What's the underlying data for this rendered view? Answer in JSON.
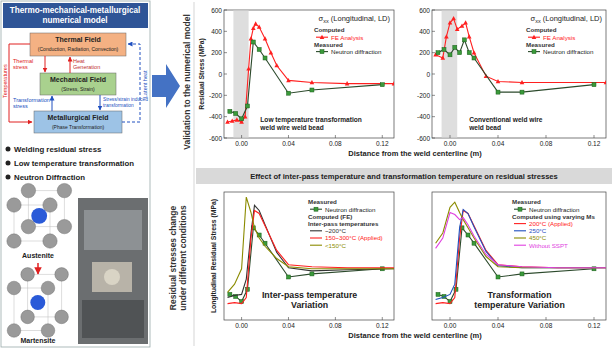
{
  "model_panel": {
    "title": [
      "Thermo-mechanical-metallurgical",
      "numerical model"
    ],
    "fields": [
      {
        "name": "Thermal Field",
        "detail": "(Conduction, Radiation, Convection)"
      },
      {
        "name": "Mechanical Field",
        "detail": "(Stress, Strain)"
      },
      {
        "name": "Metallurgical Field",
        "detail": "(Phase Transformation)"
      }
    ],
    "arrows": {
      "temperatures": [
        "Temperatures"
      ],
      "thermal_stress": [
        "Thermal",
        "stress"
      ],
      "heat_generation": [
        "Heat",
        "Generation"
      ],
      "latent_heat": [
        "Latent heat"
      ],
      "transformation_stress": [
        "Transformation",
        "stress"
      ],
      "induced_transformation": [
        "Stress/strain induced",
        "transformation"
      ]
    },
    "bullets": [
      "Welding residual stress",
      "Low temperature transformation",
      "Neutron Diffraction"
    ],
    "phases": [
      "Austenite",
      "Martensite"
    ]
  },
  "sections": {
    "validation": "Validation to the numerical model",
    "conditions": [
      "Residual stresses change",
      "under different conditions"
    ]
  },
  "bottom_header": "Effect of inter-pass temperature and transformation temperature on residual stresses",
  "chart_data": [
    {
      "type": "line",
      "title": "σxx (Longitudinal, LD)",
      "ylabel": "Residual Stress (MPa)",
      "xlabel": "Distance from the weld centerline (m)",
      "xlim": [
        -0.015,
        0.13
      ],
      "ylim": [
        -600,
        600
      ],
      "xticks": [
        {
          "value": 0,
          "label": "0.00"
        },
        {
          "value": 0.04,
          "label": "0.04"
        },
        {
          "value": 0.08,
          "label": "0.08"
        },
        {
          "value": 0.12,
          "label": "0.12"
        }
      ],
      "yticks": [
        -600,
        -400,
        -200,
        0,
        200,
        400,
        600
      ],
      "legend": "upper right",
      "shaded_region": [
        -0.007,
        0.006
      ],
      "annotation": [
        "Low temperature transformation",
        "weld wire weld bead"
      ],
      "series": [
        {
          "name": "FE Analysis",
          "legend_heading": [
            "Computed"
          ],
          "color": "#ff2020",
          "marker": "triangle",
          "x": [
            -0.012,
            -0.008,
            -0.004,
            0,
            0.003,
            0.006,
            0.008,
            0.01,
            0.012,
            0.015,
            0.02,
            0.025,
            0.03,
            0.04,
            0.06,
            0.09,
            0.13
          ],
          "values": [
            -450,
            -440,
            -430,
            -450,
            -400,
            50,
            330,
            430,
            470,
            440,
            330,
            200,
            80,
            -60,
            -80,
            -90,
            -90
          ]
        },
        {
          "name": "Neutron diffraction",
          "legend_heading": [
            "Measured"
          ],
          "color": "#3a9a3a",
          "marker": "square",
          "x": [
            -0.01,
            -0.005,
            0,
            0.005,
            0.01,
            0.015,
            0.02,
            0.04,
            0.06,
            0.12
          ],
          "values": [
            -350,
            -370,
            -420,
            -300,
            300,
            230,
            150,
            -180,
            -150,
            -100
          ]
        }
      ]
    },
    {
      "type": "line",
      "title": "σxx (Longitudinal, LD)",
      "xlim": [
        -0.015,
        0.13
      ],
      "ylim": [
        -600,
        600
      ],
      "xticks": [
        {
          "value": 0,
          "label": "0.00"
        },
        {
          "value": 0.04,
          "label": "0.04"
        },
        {
          "value": 0.08,
          "label": "0.08"
        },
        {
          "value": 0.12,
          "label": "0.12"
        }
      ],
      "yticks": [
        -600,
        -400,
        -200,
        0,
        200,
        400,
        600
      ],
      "legend": "upper right",
      "shaded_region": [
        -0.007,
        0.006
      ],
      "annotation": [
        "Conventional weld wire",
        "weld bead"
      ],
      "series": [
        {
          "name": "FE Analysis",
          "legend_heading": [
            "Computed"
          ],
          "color": "#ff2020",
          "marker": "triangle",
          "x": [
            -0.012,
            -0.006,
            -0.003,
            0,
            0.003,
            0.006,
            0.01,
            0.013,
            0.016,
            0.02,
            0.03,
            0.04,
            0.06,
            0.13
          ],
          "values": [
            180,
            150,
            350,
            480,
            520,
            420,
            450,
            480,
            350,
            200,
            -20,
            -70,
            -80,
            -80
          ]
        },
        {
          "name": "Neutron diffraction",
          "legend_heading": [
            "Measured"
          ],
          "color": "#3a9a3a",
          "marker": "square",
          "x": [
            -0.01,
            -0.005,
            0,
            0.004,
            0.008,
            0.012,
            0.016,
            0.02,
            0.04,
            0.06,
            0.12
          ],
          "values": [
            200,
            230,
            180,
            250,
            200,
            320,
            200,
            150,
            -170,
            -170,
            -100
          ]
        }
      ]
    },
    {
      "type": "line",
      "ylabel": "Longitudinal Residual Stress (MPa)",
      "xlabel": "Distance from the weld centerline (m)",
      "xlim": [
        -0.015,
        0.13
      ],
      "ylim": [
        -600,
        650
      ],
      "tick_labels": "x",
      "xticks": [
        {
          "value": 0,
          "label": "0.00"
        },
        {
          "value": 0.04,
          "label": "0.04"
        },
        {
          "value": 0.08,
          "label": "0.08"
        },
        {
          "value": 0.12,
          "label": "0.12"
        }
      ],
      "legend": "upper right",
      "annotation": [
        "Inter-pass temperature",
        "Variation"
      ],
      "series": [
        {
          "name": "Neutron diffraction",
          "legend_heading": [
            "Measured"
          ],
          "color": "#3a9a3a",
          "marker": "square",
          "x": [
            -0.01,
            -0.005,
            0,
            0.005,
            0.01,
            0.015,
            0.02,
            0.04,
            0.06,
            0.12
          ],
          "values": [
            -350,
            -370,
            -420,
            -300,
            300,
            230,
            150,
            -180,
            -150,
            -100
          ]
        },
        {
          "name": "~200°C",
          "legend_heading": [
            "Computed (FE)",
            "Inter-pass temperatures"
          ],
          "color": "#333333",
          "x": [
            -0.012,
            -0.006,
            0,
            0.004,
            0.008,
            0.011,
            0.015,
            0.02,
            0.03,
            0.04,
            0.06,
            0.09,
            0.13
          ],
          "values": [
            -380,
            -360,
            -350,
            -200,
            250,
            520,
            470,
            330,
            60,
            -90,
            -120,
            -110,
            -100
          ]
        },
        {
          "name": "150~300°C (Applied)",
          "color": "#ff2020",
          "x": [
            -0.012,
            -0.006,
            0,
            0.004,
            0.008,
            0.011,
            0.015,
            0.02,
            0.03,
            0.04,
            0.06,
            0.09,
            0.13
          ],
          "values": [
            -440,
            -430,
            -440,
            -380,
            200,
            470,
            440,
            320,
            80,
            -60,
            -80,
            -90,
            -90
          ]
        },
        {
          "name": "<150°C",
          "color": "#8b8b00",
          "x": [
            -0.012,
            -0.006,
            0,
            0.004,
            0.008,
            0.011,
            0.015,
            0.02,
            0.03,
            0.04,
            0.06,
            0.09,
            0.13
          ],
          "values": [
            -330,
            -250,
            -100,
            600,
            450,
            300,
            200,
            120,
            0,
            -80,
            -100,
            -100,
            -100
          ]
        }
      ]
    },
    {
      "type": "line",
      "xlim": [
        -0.015,
        0.13
      ],
      "ylim": [
        -600,
        650
      ],
      "tick_labels": "x",
      "xticks": [
        {
          "value": 0,
          "label": "0.00"
        },
        {
          "value": 0.04,
          "label": "0.04"
        },
        {
          "value": 0.08,
          "label": "0.08"
        },
        {
          "value": 0.12,
          "label": "0.12"
        }
      ],
      "legend": "upper right",
      "annotation": [
        "Transformation",
        "temperature Variation"
      ],
      "series": [
        {
          "name": "Neutron diffraction",
          "legend_heading": [
            "Measured"
          ],
          "color": "#3a9a3a",
          "marker": "square",
          "x": [
            -0.01,
            -0.005,
            0,
            0.005,
            0.01,
            0.015,
            0.02,
            0.04,
            0.06,
            0.12
          ],
          "values": [
            -350,
            -370,
            -420,
            -300,
            300,
            230,
            150,
            -180,
            -150,
            -100
          ]
        },
        {
          "name": "200°C (Applied)",
          "legend_heading": [
            "Computed using varying Ms"
          ],
          "color": "#ff2020",
          "x": [
            -0.012,
            -0.006,
            0,
            0.004,
            0.008,
            0.011,
            0.015,
            0.02,
            0.03,
            0.04,
            0.06,
            0.09,
            0.13
          ],
          "values": [
            -440,
            -430,
            -440,
            -380,
            200,
            470,
            440,
            320,
            80,
            -60,
            -80,
            -90,
            -90
          ]
        },
        {
          "name": "250°C",
          "color": "#1f4fbf",
          "x": [
            -0.012,
            -0.006,
            0,
            0.004,
            0.008,
            0.011,
            0.015,
            0.02,
            0.03,
            0.04,
            0.06,
            0.09,
            0.13
          ],
          "values": [
            -400,
            -380,
            -350,
            -250,
            300,
            480,
            440,
            310,
            70,
            -70,
            -90,
            -90,
            -90
          ]
        },
        {
          "name": "450°C",
          "color": "#8b8b00",
          "x": [
            -0.012,
            -0.006,
            0,
            0.004,
            0.008,
            0.011,
            0.015,
            0.02,
            0.03,
            0.04,
            0.06,
            0.09,
            0.13
          ],
          "values": [
            150,
            250,
            500,
            550,
            450,
            380,
            300,
            200,
            20,
            -80,
            -90,
            -90,
            -90
          ]
        },
        {
          "name": "Without SSPT",
          "color": "#e040e0",
          "x": [
            -0.012,
            -0.006,
            0,
            0.004,
            0.008,
            0.011,
            0.015,
            0.02,
            0.03,
            0.04,
            0.06,
            0.09,
            0.13
          ],
          "values": [
            100,
            200,
            450,
            430,
            380,
            400,
            330,
            220,
            40,
            -60,
            -80,
            -90,
            -90
          ]
        }
      ]
    }
  ]
}
